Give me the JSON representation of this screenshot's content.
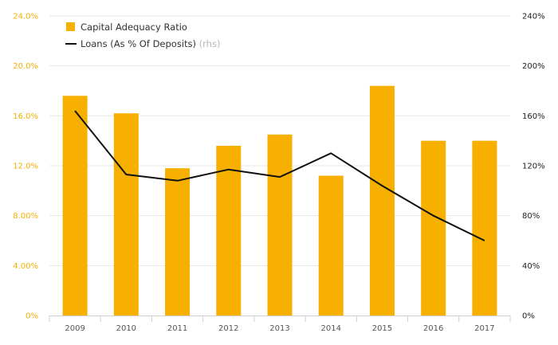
{
  "chart_data": {
    "type": "bar",
    "categories": [
      "2009",
      "2010",
      "2011",
      "2012",
      "2013",
      "2014",
      "2015",
      "2016",
      "2017"
    ],
    "series": [
      {
        "name": "Capital Adequacy Ratio",
        "type": "bar",
        "axis": "left",
        "values": [
          17.6,
          16.2,
          11.8,
          13.6,
          14.5,
          11.2,
          18.4,
          14.0,
          14.0
        ]
      },
      {
        "name": "Loans (As % Of Deposits)",
        "legend_suffix": "(rhs)",
        "type": "line",
        "axis": "right",
        "values": [
          164,
          113,
          108,
          117,
          111,
          130,
          104,
          80,
          60
        ]
      }
    ],
    "left_axis": {
      "ylim": [
        0,
        24
      ],
      "ticks": [
        0,
        4,
        8,
        12,
        16,
        20,
        24
      ],
      "tick_labels": [
        "0%",
        "4.00%",
        "8.00%",
        "12.0%",
        "16.0%",
        "20.0%",
        "24.0%"
      ]
    },
    "right_axis": {
      "ylim": [
        0,
        240
      ],
      "ticks": [
        0,
        40,
        80,
        120,
        160,
        200,
        240
      ],
      "tick_labels": [
        "0%",
        "40%",
        "80%",
        "120%",
        "160%",
        "200%",
        "240%"
      ]
    },
    "grid": true,
    "legend_position": "top-left",
    "colors": {
      "bar": "#f8b000",
      "line": "#111111",
      "grid": "#e6e6e6",
      "left_tick": "#f5b000",
      "right_tick": "#222222"
    }
  }
}
